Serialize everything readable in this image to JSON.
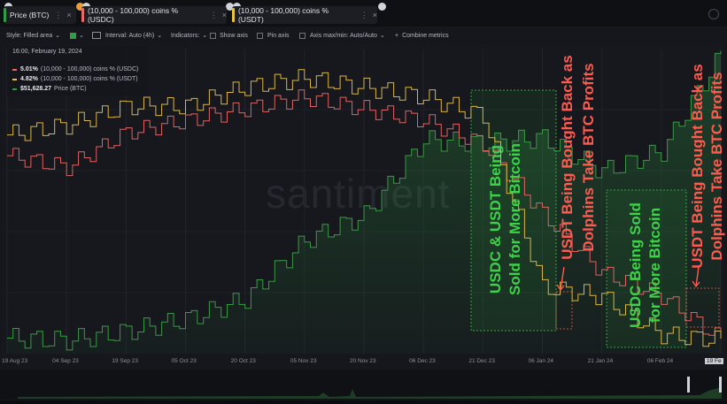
{
  "tabs": [
    {
      "label": "Price (BTC)",
      "color": "#2f9e44"
    },
    {
      "label": "(10,000 - 100,000) coins % (USDC)",
      "color": "#e86a6a"
    },
    {
      "label": "(10,000 - 100,000) coins % (USDT)",
      "color": "#e9c24a"
    }
  ],
  "toolbar": {
    "style": "Style: Filled area",
    "interval": "Interval: Auto (4h)",
    "indicators": "Indicators:",
    "show_axis": "Show axis",
    "pin_axis": "Pin axis",
    "axis_maxmin": "Axis max/min: Auto/Auto",
    "combine": "Combine metrics"
  },
  "legend": {
    "datetime": "16:00, February 19, 2024",
    "items": [
      {
        "value": "5.01%",
        "label": "(10,000 - 100,000) coins % (USDC)",
        "color": "#e86a6a"
      },
      {
        "value": "4.82%",
        "label": "(10,000 - 100,000) coins % (USDT)",
        "color": "#e9c24a"
      },
      {
        "value": "$51,628.27",
        "label": "Price (BTC)",
        "color": "#2f9e44"
      }
    ]
  },
  "watermark": "santiment",
  "x_ticks": [
    "19 Aug 23",
    "04 Sep 23",
    "19 Sep 23",
    "05 Oct 23",
    "20 Oct 23",
    "05 Nov 23",
    "20 Nov 23",
    "06 Dec 23",
    "21 Dec 23",
    "06 Jan 24",
    "21 Jan 24",
    "06 Feb 24",
    "19 Fe"
  ],
  "annotations": [
    {
      "text_lines": [
        "USDC & USDT Being",
        "Sold for More Bitcoin"
      ],
      "color": "#3fd14a"
    },
    {
      "text_lines": [
        "USDT Being Bought Back as",
        "Dolphins Take BTC Profits"
      ],
      "color": "#ff5a4f"
    },
    {
      "text_lines": [
        "USDC Being Sold",
        "for More Bitcoin"
      ],
      "color": "#3fd14a"
    },
    {
      "text_lines": [
        "USDT Being Bought Back as",
        "Dolphins Take BTC Profits"
      ],
      "color": "#ff5a4f"
    }
  ],
  "chart_data": {
    "type": "line",
    "x": [
      "19 Aug 23",
      "04 Sep 23",
      "19 Sep 23",
      "05 Oct 23",
      "20 Oct 23",
      "05 Nov 23",
      "20 Nov 23",
      "06 Dec 23",
      "21 Dec 23",
      "06 Jan 24",
      "21 Jan 24",
      "06 Feb 24",
      "19 Feb 24"
    ],
    "series": [
      {
        "name": "Price (BTC)",
        "color": "#2f9e44",
        "values": [
          26000,
          25800,
          26600,
          27700,
          29500,
          34800,
          37000,
          43800,
          43500,
          44000,
          41000,
          42800,
          51628
        ]
      },
      {
        "name": "(10,000 - 100,000) coins % (USDC)",
        "color": "#e86a6a",
        "values": [
          5.8,
          5.75,
          5.9,
          5.95,
          6.0,
          6.05,
          6.0,
          5.95,
          5.85,
          5.55,
          5.3,
          5.2,
          5.01
        ]
      },
      {
        "name": "(10,000 - 100,000) coins % (USDT)",
        "color": "#e9c24a",
        "values": [
          5.9,
          5.95,
          6.05,
          6.05,
          6.15,
          6.2,
          6.15,
          6.1,
          6.0,
          5.1,
          5.05,
          4.85,
          4.82
        ]
      }
    ],
    "grid": true
  }
}
